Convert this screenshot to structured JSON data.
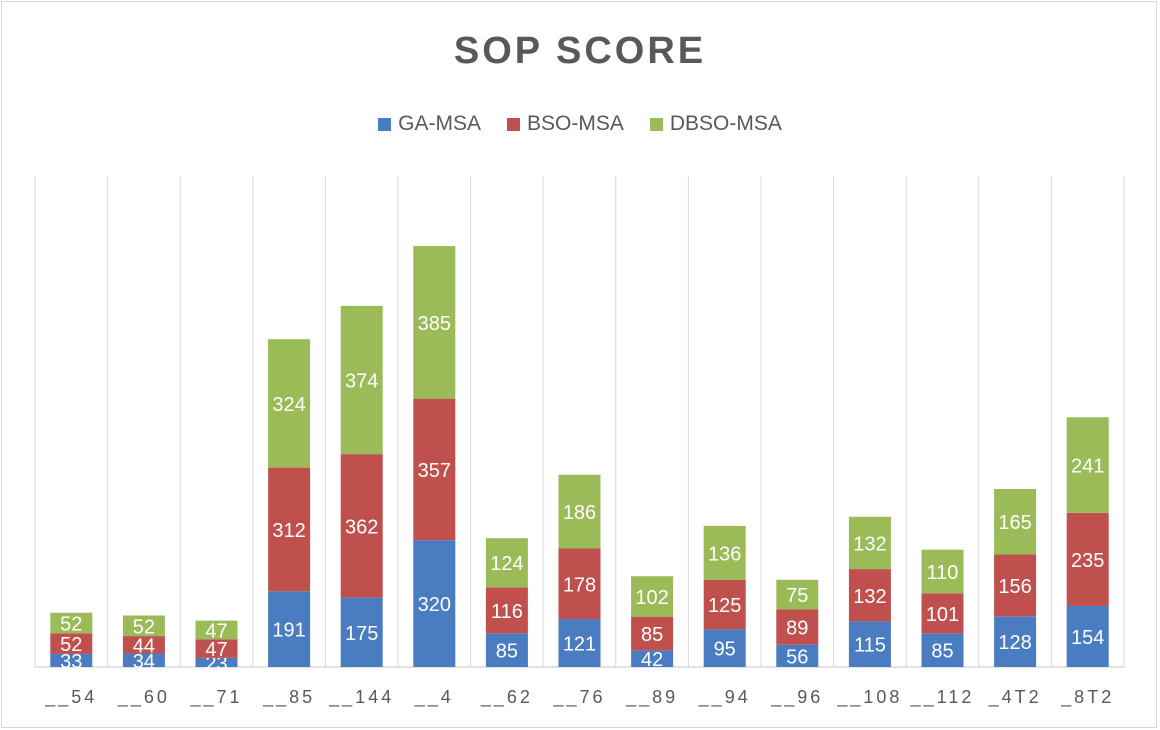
{
  "chart_data": {
    "type": "bar",
    "stacked": true,
    "title": "SOP SCORE",
    "xlabel": "",
    "ylabel": "",
    "ylim": [
      0,
      1100
    ],
    "grid": "vertical-category-separators",
    "legend_position": "top",
    "categories": [
      "__54",
      "__60",
      "__71",
      "__85",
      "__144",
      "__4",
      "__62",
      "__76",
      "__89",
      "__94",
      "__96",
      "__108",
      "__112",
      "_4T2",
      "_8T2"
    ],
    "series": [
      {
        "name": "GA-MSA",
        "color": "#4a7cc2",
        "values": [
          33,
          34,
          23,
          191,
          175,
          320,
          85,
          121,
          42,
          95,
          56,
          115,
          85,
          128,
          154
        ]
      },
      {
        "name": "BSO-MSA",
        "color": "#c0504d",
        "values": [
          52,
          44,
          47,
          312,
          362,
          357,
          116,
          178,
          85,
          125,
          89,
          132,
          101,
          156,
          235
        ]
      },
      {
        "name": "DBSO-MSA",
        "color": "#9bbb59",
        "values": [
          52,
          52,
          47,
          324,
          374,
          385,
          124,
          186,
          102,
          136,
          75,
          132,
          110,
          165,
          241
        ]
      }
    ]
  }
}
